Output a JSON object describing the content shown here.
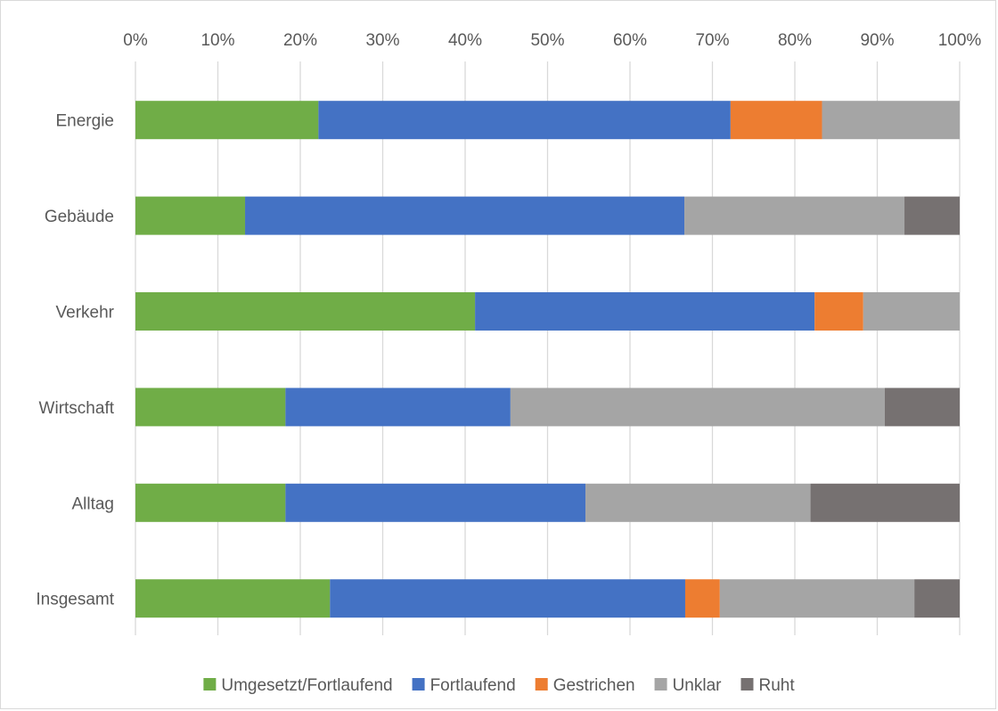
{
  "chart_data": {
    "type": "bar",
    "orientation": "horizontal",
    "stacked": true,
    "percent_stacked": true,
    "categories": [
      "Energie",
      "Gebäude",
      "Verkehr",
      "Wirtschaft",
      "Alltag",
      "Insgesamt"
    ],
    "series": [
      {
        "name": "Umgesetzt/Fortlaufend",
        "color": "#70ad47",
        "values": [
          22.2,
          13.3,
          41.2,
          18.2,
          18.2,
          23.6
        ]
      },
      {
        "name": "Fortlaufend",
        "color": "#4472c4",
        "values": [
          50.0,
          53.3,
          41.2,
          27.3,
          36.4,
          43.1
        ]
      },
      {
        "name": "Gestrichen",
        "color": "#ed7d31",
        "values": [
          11.1,
          0,
          5.9,
          0,
          0,
          4.2
        ]
      },
      {
        "name": "Unklar",
        "color": "#a5a5a5",
        "values": [
          16.7,
          26.7,
          11.7,
          45.4,
          27.3,
          23.6
        ]
      },
      {
        "name": "Ruht",
        "color": "#767171",
        "values": [
          0,
          6.7,
          0,
          9.1,
          18.1,
          5.5
        ]
      }
    ],
    "xticks": [
      "0%",
      "10%",
      "20%",
      "30%",
      "40%",
      "50%",
      "60%",
      "70%",
      "80%",
      "90%",
      "100%"
    ],
    "xlim": [
      0,
      100
    ],
    "axis_position": "top",
    "grid": true,
    "legend": "bottom"
  }
}
